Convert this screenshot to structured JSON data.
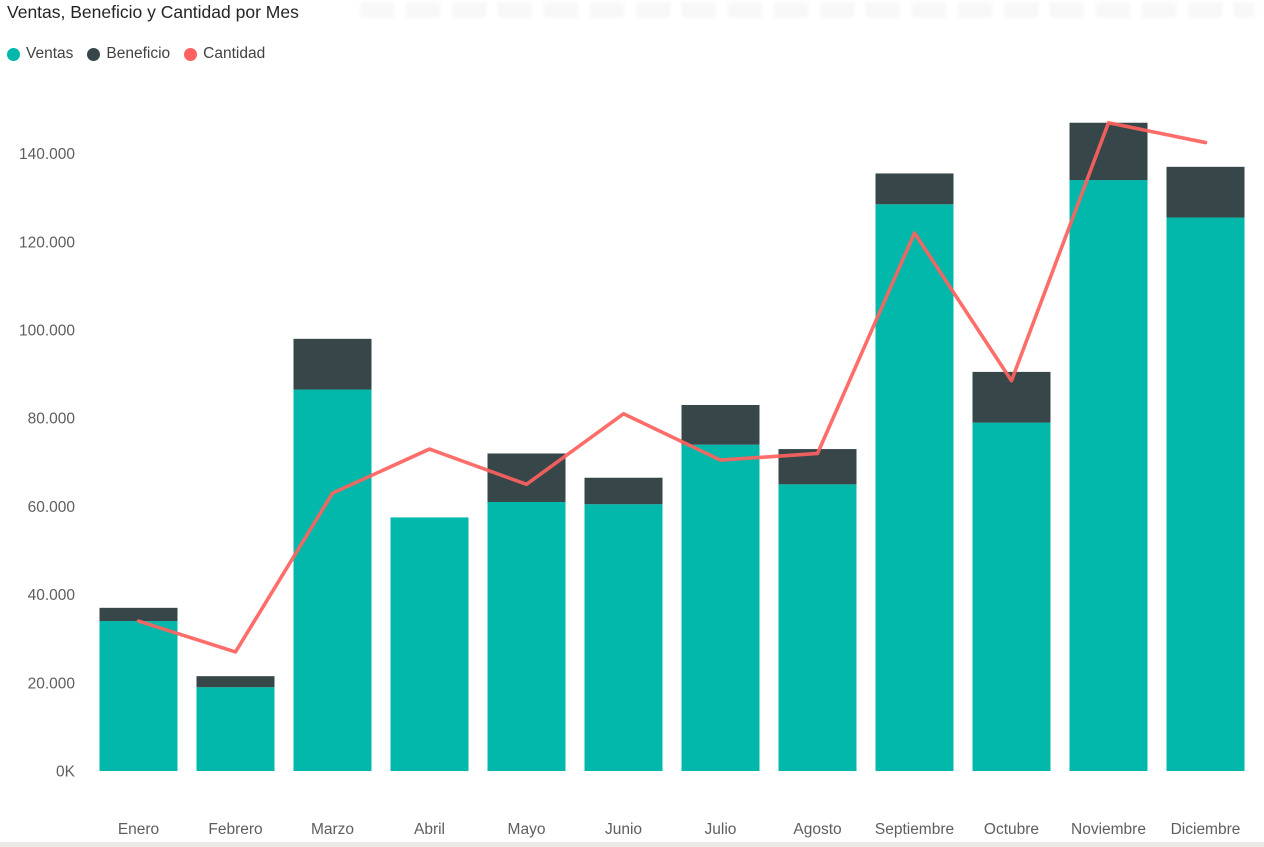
{
  "header": {
    "title": "Ventas, Beneficio y Cantidad por Mes"
  },
  "legend": {
    "items": [
      {
        "label": "Ventas",
        "color": "#01B8AA",
        "marker": "circle"
      },
      {
        "label": "Beneficio",
        "color": "#374649",
        "marker": "circle"
      },
      {
        "label": "Cantidad",
        "color": "#FD625E",
        "marker": "circle"
      }
    ]
  },
  "chart_data": {
    "type": "combo",
    "title": "Ventas, Beneficio y Cantidad por Mes",
    "categories": [
      "Enero",
      "Febrero",
      "Marzo",
      "Abril",
      "Mayo",
      "Junio",
      "Julio",
      "Agosto",
      "Septiembre",
      "Octubre",
      "Noviembre",
      "Diciembre"
    ],
    "series": [
      {
        "name": "Ventas",
        "type": "bar",
        "stacked": true,
        "color": "#01B8AA",
        "values": [
          34000,
          19000,
          86500,
          57500,
          61000,
          60500,
          74000,
          65000,
          128500,
          79000,
          134000,
          125500
        ]
      },
      {
        "name": "Beneficio",
        "type": "bar",
        "stacked": true,
        "color": "#374649",
        "values": [
          3000,
          2500,
          11500,
          0,
          11000,
          6000,
          9000,
          8000,
          7000,
          11500,
          13000,
          11500
        ]
      },
      {
        "name": "Cantidad",
        "type": "line",
        "stacked": false,
        "color": "#FD625E",
        "values": [
          34000,
          27000,
          63000,
          73000,
          65000,
          81000,
          70500,
          72000,
          122000,
          88500,
          147000,
          142500
        ]
      }
    ],
    "y_axis": {
      "tick_labels": [
        "0K",
        "20.000",
        "40.000",
        "60.000",
        "80.000",
        "100.000",
        "120.000",
        "140.000"
      ],
      "tick_values": [
        0,
        20000,
        40000,
        60000,
        80000,
        100000,
        120000,
        140000
      ],
      "min": 0,
      "max": 154000
    },
    "grid": false,
    "legend_position": "top-left",
    "background": "#ffffff"
  }
}
